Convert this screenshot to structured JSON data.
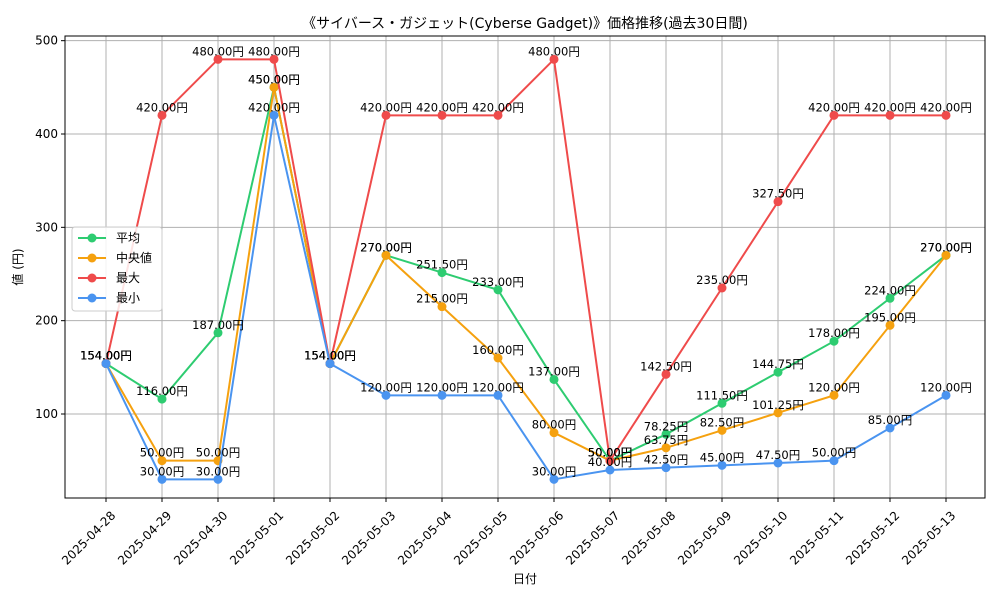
{
  "chart_data": {
    "type": "line",
    "title": "《サイバース・ガジェット(Cyberse Gadget)》価格推移(過去30日間)",
    "xlabel": "日付",
    "ylabel": "値 (円)",
    "ylim": [
      10,
      505
    ],
    "y_ticks": [
      "100",
      "200",
      "300",
      "400",
      "500"
    ],
    "grid": true,
    "legend_position": "center-left",
    "categories": [
      "2025-04-28",
      "2025-04-29",
      "2025-04-30",
      "2025-05-01",
      "2025-05-02",
      "2025-05-03",
      "2025-05-04",
      "2025-05-05",
      "2025-05-06",
      "2025-05-07",
      "2025-05-08",
      "2025-05-09",
      "2025-05-10",
      "2025-05-11",
      "2025-05-12",
      "2025-05-13"
    ],
    "series": [
      {
        "name": "平均",
        "color": "#2ecc71",
        "values": [
          154,
          116,
          187,
          450,
          154,
          270,
          251.5,
          233,
          137,
          50,
          78.25,
          111.5,
          144.75,
          178,
          224,
          270
        ],
        "labels": [
          "154.00円",
          "116.00円",
          "187.00円",
          "450.00円",
          "154.00円",
          "270.00円",
          "251.50円",
          "233.00円",
          "137.00円",
          "50.00円",
          "78.25円",
          "111.50円",
          "144.75円",
          "178.00円",
          "224.00円",
          "270.00円"
        ]
      },
      {
        "name": "中央値",
        "color": "#f5a10f",
        "values": [
          154,
          50,
          50,
          450,
          154,
          270,
          215,
          160,
          80,
          50,
          63.75,
          82.5,
          101.25,
          120,
          195,
          270
        ],
        "labels": [
          "154.00円",
          "50.00円",
          "50.00円",
          "450.00円",
          "154.00円",
          "270.00円",
          "215.00円",
          "160.00円",
          "80.00円",
          "50.00円",
          "63.75円",
          "82.50円",
          "101.25円",
          "120.00円",
          "195.00円",
          "270.00円"
        ]
      },
      {
        "name": "最大",
        "color": "#ef4b4b",
        "values": [
          154,
          420,
          480,
          480,
          154,
          420,
          420,
          420,
          480,
          50,
          142.5,
          235,
          327.5,
          420,
          420,
          420
        ],
        "labels": [
          "154.00円",
          "420.00円",
          "480.00円",
          "480.00円",
          "154.00円",
          "420.00円",
          "420.00円",
          "420.00円",
          "480.00円",
          "50.00円",
          "142.50円",
          "235.00円",
          "327.50円",
          "420.00円",
          "420.00円",
          "420.00円"
        ]
      },
      {
        "name": "最小",
        "color": "#4a94f0",
        "values": [
          154,
          30,
          30,
          420,
          154,
          120,
          120,
          120,
          30,
          40,
          42.5,
          45,
          47.5,
          50,
          85,
          120
        ],
        "labels": [
          "154.00円",
          "30.00円",
          "30.00円",
          "420.00円",
          "154.00円",
          "120.00円",
          "120.00円",
          "120.00円",
          "30.00円",
          "40.00円",
          "42.50円",
          "45.00円",
          "47.50円",
          "50.00円",
          "85.00円",
          "120.00円"
        ]
      }
    ]
  }
}
